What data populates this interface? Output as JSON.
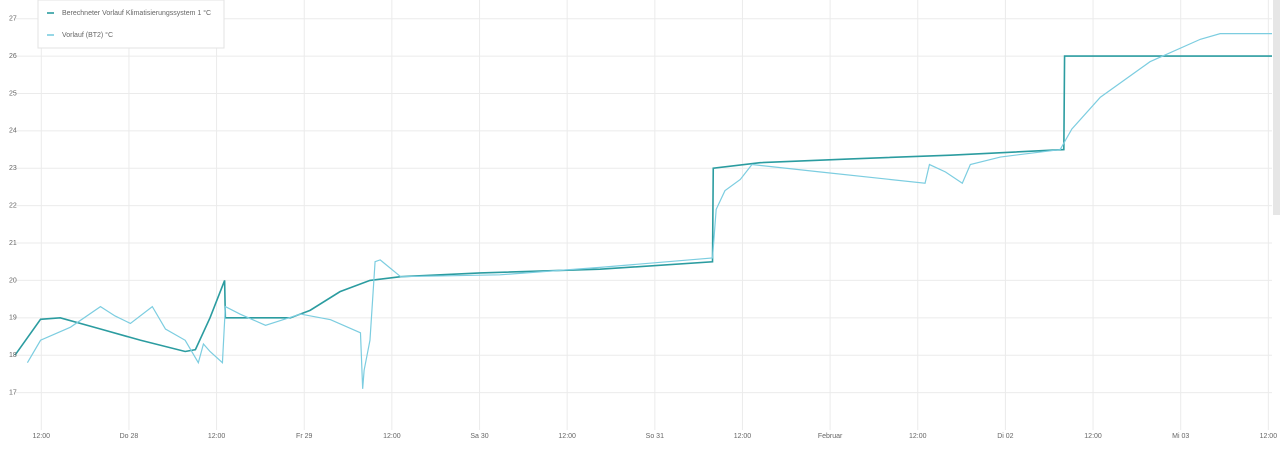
{
  "chart_data": {
    "type": "line",
    "legend": "top-left",
    "grid": true,
    "xlim": [
      8.4,
      180.5
    ],
    "xticks": [
      {
        "value": 12,
        "label": "12:00"
      },
      {
        "value": 24,
        "label": "Do 28"
      },
      {
        "value": 36,
        "label": "12:00"
      },
      {
        "value": 48,
        "label": "Fr 29"
      },
      {
        "value": 60,
        "label": "12:00"
      },
      {
        "value": 72,
        "label": "Sa 30"
      },
      {
        "value": 84,
        "label": "12:00"
      },
      {
        "value": 96,
        "label": "So 31"
      },
      {
        "value": 108,
        "label": "12:00"
      },
      {
        "value": 120,
        "label": "Februar"
      },
      {
        "value": 132,
        "label": "12:00"
      },
      {
        "value": 144,
        "label": "Di 02"
      },
      {
        "value": 156,
        "label": "12:00"
      },
      {
        "value": 168,
        "label": "Mi 03"
      },
      {
        "value": 180,
        "label": "12:00"
      }
    ],
    "ylim": [
      16,
      27.5
    ],
    "yticks": [
      17,
      18,
      19,
      20,
      21,
      22,
      23,
      24,
      25,
      26,
      27
    ],
    "series": [
      {
        "name": "Berechneter Vorlauf Klimatisierungssystem 1 °C",
        "color": "#2b9ca0",
        "x": [
          8.4,
          11.9,
          14.6,
          20.1,
          25.6,
          31.7,
          33.1,
          35.1,
          37.1,
          37.2,
          46.1,
          48.8,
          52.9,
          57.0,
          61.2,
          72.1,
          88.5,
          103.9,
          104.0,
          110.4,
          122.8,
          136.5,
          152.0,
          152.1,
          180.5
        ],
        "values": [
          18.0,
          18.96,
          19.0,
          18.7,
          18.4,
          18.1,
          18.15,
          19.0,
          20.0,
          19.0,
          19.0,
          19.2,
          19.7,
          20.0,
          20.1,
          20.2,
          20.3,
          20.5,
          23.0,
          23.15,
          23.25,
          23.35,
          23.5,
          26.0,
          26.0
        ]
      },
      {
        "name": "Vorlauf (BT2) °C",
        "color": "#7ccde0",
        "x": [
          10.1,
          11.9,
          16.0,
          20.1,
          22.1,
          24.2,
          27.2,
          29.0,
          31.7,
          33.5,
          34.2,
          35.1,
          36.8,
          37.2,
          39.2,
          42.7,
          47.5,
          51.6,
          55.7,
          56.0,
          56.2,
          57.0,
          57.7,
          58.4,
          61.2,
          74.8,
          88.5,
          103.9,
          104.4,
          105.6,
          107.7,
          109.3,
          118.7,
          133.0,
          133.6,
          135.8,
          138.1,
          139.2,
          143.3,
          151.5,
          153.1,
          157.0,
          163.8,
          170.7,
          173.4,
          180.5
        ],
        "values": [
          17.8,
          18.4,
          18.75,
          19.3,
          19.05,
          18.85,
          19.3,
          18.7,
          18.4,
          17.8,
          18.3,
          18.1,
          17.8,
          19.3,
          19.1,
          18.8,
          19.1,
          18.95,
          18.6,
          17.1,
          17.6,
          18.4,
          20.5,
          20.55,
          20.1,
          20.15,
          20.35,
          20.6,
          21.9,
          22.4,
          22.7,
          23.1,
          22.9,
          22.6,
          23.1,
          22.9,
          22.6,
          23.1,
          23.3,
          23.5,
          24.05,
          24.9,
          25.85,
          26.45,
          26.6,
          26.6
        ]
      }
    ]
  }
}
